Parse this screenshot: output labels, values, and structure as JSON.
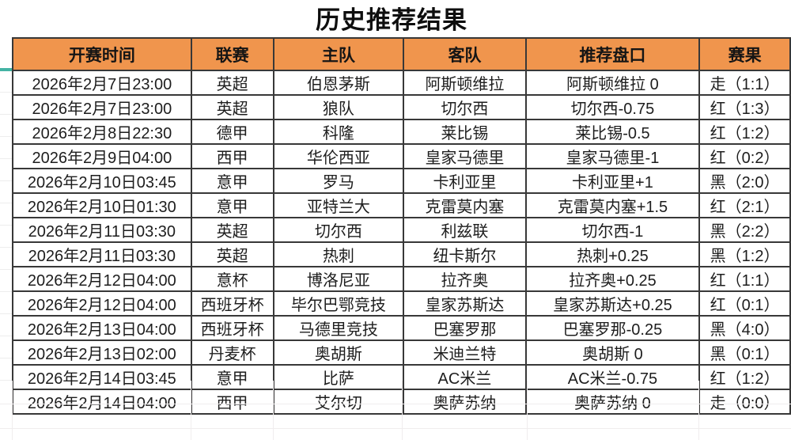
{
  "title": "历史推荐结果",
  "table": {
    "headers": [
      "开赛时间",
      "联赛",
      "主队",
      "客队",
      "推荐盘口",
      "赛果"
    ],
    "rows": [
      {
        "time": "2026年2月7日23:00",
        "league": "英超",
        "home": "伯恩茅斯",
        "away": "阿斯顿维拉",
        "handicap": "阿斯顿维拉 0",
        "result": "走（1:1）",
        "result_type": "push"
      },
      {
        "time": "2026年2月7日23:00",
        "league": "英超",
        "home": "狼队",
        "away": "切尔西",
        "handicap": "切尔西-0.75",
        "result": "红（1:3）",
        "result_type": "red"
      },
      {
        "time": "2026年2月8日22:30",
        "league": "德甲",
        "home": "科隆",
        "away": "莱比锡",
        "handicap": "莱比锡-0.5",
        "result": "红（1:2）",
        "result_type": "red"
      },
      {
        "time": "2026年2月9日04:00",
        "league": "西甲",
        "home": "华伦西亚",
        "away": "皇家马德里",
        "handicap": "皇家马德里-1",
        "result": "红（0:2）",
        "result_type": "red"
      },
      {
        "time": "2026年2月10日03:45",
        "league": "意甲",
        "home": "罗马",
        "away": "卡利亚里",
        "handicap": "卡利亚里+1",
        "result": "黑（2:0）",
        "result_type": "black"
      },
      {
        "time": "2026年2月10日01:30",
        "league": "意甲",
        "home": "亚特兰大",
        "away": "克雷莫内塞",
        "handicap": "克雷莫内塞+1.5",
        "result": "红（2:1）",
        "result_type": "red"
      },
      {
        "time": "2026年2月11日03:30",
        "league": "英超",
        "home": "切尔西",
        "away": "利兹联",
        "handicap": "切尔西-1",
        "result": "黑（2:2）",
        "result_type": "black"
      },
      {
        "time": "2026年2月11日03:30",
        "league": "英超",
        "home": "热刺",
        "away": "纽卡斯尔",
        "handicap": "热刺+0.25",
        "result": "黑（1:2）",
        "result_type": "black"
      },
      {
        "time": "2026年2月12日04:00",
        "league": "意杯",
        "home": "博洛尼亚",
        "away": "拉齐奥",
        "handicap": "拉齐奥+0.25",
        "result": "红（1:1）",
        "result_type": "red"
      },
      {
        "time": "2026年2月12日04:00",
        "league": "西班牙杯",
        "home": "毕尔巴鄂竞技",
        "away": "皇家苏斯达",
        "handicap": "皇家苏斯达+0.25",
        "result": "红（0:1）",
        "result_type": "red"
      },
      {
        "time": "2026年2月13日04:00",
        "league": "西班牙杯",
        "home": "马德里竞技",
        "away": "巴塞罗那",
        "handicap": "巴塞罗那-0.25",
        "result": "黑（4:0）",
        "result_type": "black"
      },
      {
        "time": "2026年2月13日02:00",
        "league": "丹麦杯",
        "home": "奥胡斯",
        "away": "米迪兰特",
        "handicap": "奥胡斯 0",
        "result": "黑（0:1）",
        "result_type": "black"
      },
      {
        "time": "2026年2月14日03:45",
        "league": "意甲",
        "home": "比萨",
        "away": "AC米兰",
        "handicap": "AC米兰-0.75",
        "result": "红（1:2）",
        "result_type": "red"
      },
      {
        "time": "2026年2月14日04:00",
        "league": "西甲",
        "home": "艾尔切",
        "away": "奥萨苏纳",
        "handicap": "奥萨苏纳 0",
        "result": "走（0:0）",
        "result_type": "push"
      }
    ]
  },
  "colors": {
    "header_bg": "#f0954d",
    "grid_dark": "#383838",
    "result_red": "#e0655a",
    "result_push": "#eaa53e",
    "result_black": "#1d1d1d",
    "freeze_indicator": "#44b3a4"
  }
}
